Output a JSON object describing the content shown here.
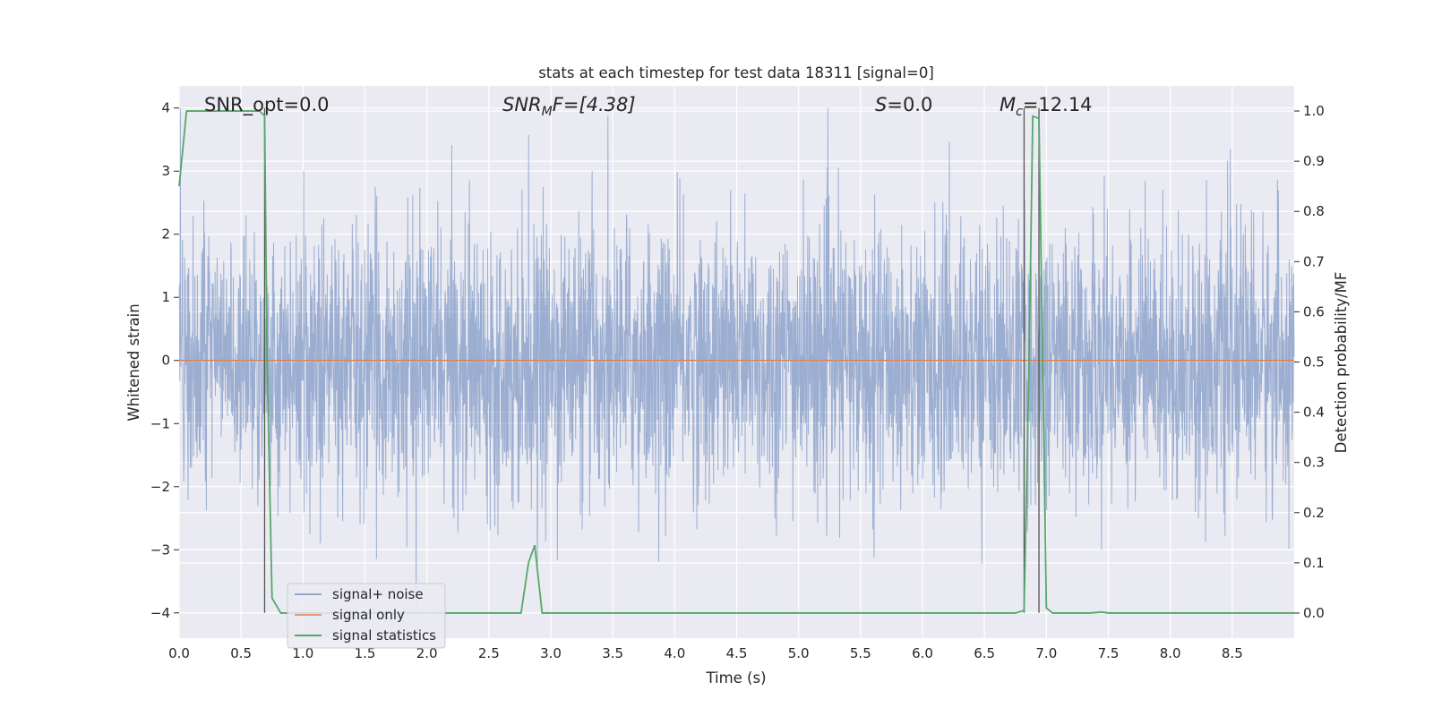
{
  "chart_data": {
    "type": "line",
    "title": "stats at each timestep for test data 18311 [signal=0]",
    "xlabel": "Time (s)",
    "ylabel": "Whitened strain",
    "ylabel_right": "Detection probability/MF",
    "xlim": [
      0.0,
      9.0
    ],
    "ylim": [
      -4.4,
      4.35
    ],
    "ylim_right": [
      -0.05,
      1.05
    ],
    "x_ticks": [
      "0.0",
      "0.5",
      "1.0",
      "1.5",
      "2.0",
      "2.5",
      "3.0",
      "3.5",
      "4.0",
      "4.5",
      "5.0",
      "5.5",
      "6.0",
      "6.5",
      "7.0",
      "7.5",
      "8.0",
      "8.5"
    ],
    "y_ticks": [
      "−4",
      "−3",
      "−2",
      "−1",
      "0",
      "1",
      "2",
      "3",
      "4"
    ],
    "y_ticks_right": [
      "0.0",
      "0.1",
      "0.2",
      "0.3",
      "0.4",
      "0.5",
      "0.6",
      "0.7",
      "0.8",
      "0.9",
      "1.0"
    ],
    "grid": true,
    "legend_position": "lower-left",
    "annotations": {
      "snr_opt": "SNR_opt=0.0",
      "snr_mf_base": "SNR",
      "snr_mf_sub": "M",
      "snr_mf_rest": "F=[4.38]",
      "s_italic": "S",
      "s_rest": "=0.0",
      "mc_italic": "M",
      "mc_sub": "c",
      "mc_rest": "=12.14"
    },
    "vertical_markers": [
      0.69,
      6.82,
      6.94
    ],
    "series": [
      {
        "name": "signal+ noise",
        "color": "#4c72b0",
        "noise_envelope": {
          "typical_abs_max": 2.2,
          "peak_max": 4.0,
          "peak_min": -4.0
        }
      },
      {
        "name": "signal only",
        "color": "#dd8452",
        "x": [
          0.0,
          9.0
        ],
        "y": [
          0.0,
          0.0
        ]
      },
      {
        "name": "signal statistics",
        "color": "#55a868",
        "axis": "right",
        "x": [
          0.0,
          0.06,
          0.12,
          0.25,
          0.5,
          0.65,
          0.69,
          0.71,
          0.75,
          0.82,
          0.9,
          2.0,
          2.7,
          2.76,
          2.82,
          2.87,
          2.93,
          3.0,
          5.0,
          6.5,
          6.75,
          6.82,
          6.86,
          6.89,
          6.94,
          6.97,
          7.0,
          7.05,
          7.1,
          7.35,
          7.45,
          7.5,
          9.0
        ],
        "y": [
          0.85,
          1.0,
          1.0,
          1.0,
          1.0,
          1.0,
          0.99,
          0.5,
          0.03,
          0.0,
          0.0,
          0.0,
          0.0,
          0.0,
          0.1,
          0.135,
          0.0,
          0.0,
          0.0,
          0.0,
          0.0,
          0.005,
          0.5,
          0.99,
          0.985,
          0.5,
          0.01,
          0.0,
          0.0,
          0.0,
          0.002,
          0.0,
          0.0
        ]
      }
    ]
  }
}
